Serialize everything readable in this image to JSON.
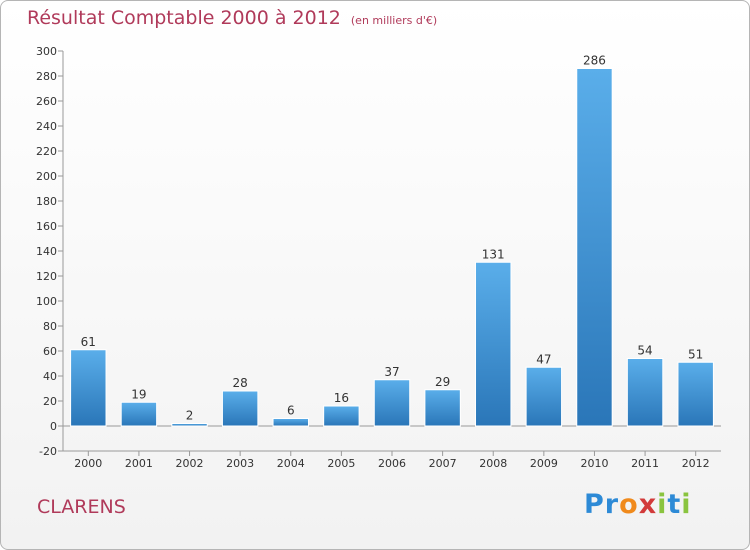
{
  "header": {
    "title": "Résultat Comptable 2000 à 2012",
    "unit": "(en milliers d'€)"
  },
  "footer": {
    "commune": "CLARENS",
    "logo_letters": [
      {
        "char": "P",
        "color": "#2d8ad6"
      },
      {
        "char": "r",
        "color": "#2d8ad6"
      },
      {
        "char": "o",
        "color": "#f08a1c"
      },
      {
        "char": "x",
        "color": "#d23a3a"
      },
      {
        "char": "i",
        "color": "#8ac43f"
      },
      {
        "char": "t",
        "color": "#2d8ad6"
      },
      {
        "char": "i",
        "color": "#8ac43f"
      }
    ]
  },
  "chart_data": {
    "type": "bar",
    "title": "Résultat Comptable 2000 à 2012",
    "ylabel": "(en milliers d'€)",
    "categories": [
      "2000",
      "2001",
      "2002",
      "2003",
      "2004",
      "2005",
      "2006",
      "2007",
      "2008",
      "2009",
      "2010",
      "2011",
      "2012"
    ],
    "values": [
      61,
      19,
      2,
      28,
      6,
      16,
      37,
      29,
      131,
      47,
      286,
      54,
      51
    ],
    "ylim": [
      -20,
      300
    ],
    "ytick_step": 20,
    "grid": false,
    "legend": "none",
    "bar_color_top": "#5aaeea",
    "bar_color_bottom": "#2a76b8"
  }
}
